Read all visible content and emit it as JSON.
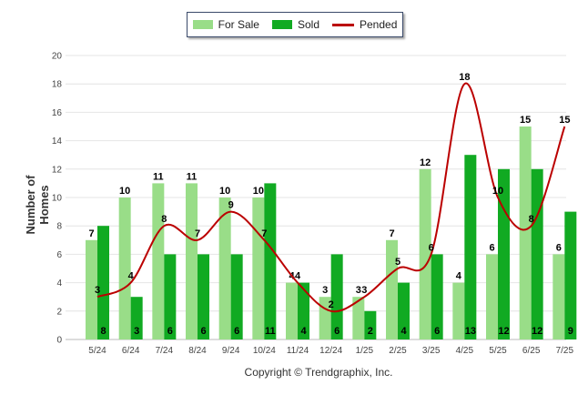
{
  "chart_data": {
    "type": "bar",
    "categories": [
      "5/24",
      "6/24",
      "7/24",
      "8/24",
      "9/24",
      "10/24",
      "11/24",
      "12/24",
      "1/25",
      "2/25",
      "3/25",
      "4/25",
      "5/25",
      "6/25",
      "7/25"
    ],
    "series": [
      {
        "name": "For Sale",
        "type": "bar",
        "color": "#99dd88",
        "values": [
          7,
          10,
          11,
          11,
          10,
          10,
          4,
          3,
          3,
          7,
          12,
          4,
          6,
          15,
          6
        ]
      },
      {
        "name": "Sold",
        "type": "bar",
        "color": "#11aa22",
        "values": [
          8,
          3,
          6,
          6,
          6,
          11,
          4,
          6,
          2,
          4,
          6,
          13,
          12,
          12,
          9
        ]
      },
      {
        "name": "Pended",
        "type": "line",
        "color": "#bb0000",
        "values": [
          3,
          4,
          8,
          7,
          9,
          7,
          4,
          2,
          3,
          5,
          6,
          18,
          10,
          8,
          15
        ]
      }
    ],
    "ylabel": "Number of Homes",
    "xlabel": "",
    "ylim": [
      0,
      20
    ],
    "yticks": [
      0,
      2,
      4,
      6,
      8,
      10,
      12,
      14,
      16,
      18,
      20
    ],
    "legend_position": "top-center",
    "grid": true
  },
  "footer": {
    "credit": "Copyright © Trendgraphix, Inc."
  }
}
